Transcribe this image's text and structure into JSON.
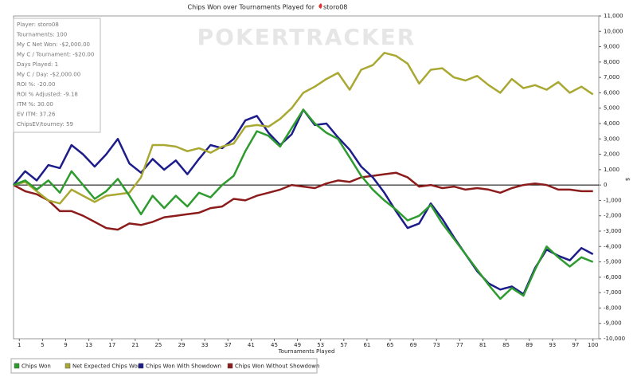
{
  "chart_data": {
    "type": "line",
    "title": "Chips Won over Tournaments Played for",
    "title_player": "storo08",
    "watermark": "POKERTRACKER",
    "x_label": "Tournaments Played",
    "y_label": "$",
    "info": [
      "Player: storo08",
      "Tournaments: 100",
      "My C Net Won: -$2,000.00",
      "My C / Tournament: -$20.00",
      "Days Played: 1",
      "My C / Day: -$2,000.00",
      "ROI %: -20.00",
      "ROI % Adjusted: -9.18",
      "ITM %: 30.00",
      "EV ITM: 37.26",
      "ChipsEV/tourney: 59"
    ],
    "x": [
      0,
      2,
      4,
      6,
      8,
      10,
      12,
      14,
      16,
      18,
      20,
      22,
      24,
      26,
      28,
      30,
      32,
      34,
      36,
      38,
      40,
      42,
      44,
      46,
      48,
      50,
      52,
      54,
      56,
      58,
      60,
      62,
      64,
      66,
      68,
      70,
      72,
      74,
      76,
      78,
      80,
      82,
      84,
      86,
      88,
      90,
      92,
      94,
      96,
      98,
      100
    ],
    "series": [
      {
        "name": "Chips Won",
        "color": "#2e9b2e",
        "values": [
          0,
          300,
          -300,
          300,
          -500,
          900,
          0,
          -900,
          -400,
          400,
          -700,
          -1900,
          -700,
          -1500,
          -700,
          -1400,
          -500,
          -800,
          0,
          600,
          2200,
          3500,
          3200,
          2500,
          3700,
          4900,
          4000,
          3400,
          3000,
          1800,
          600,
          -300,
          -1000,
          -1600,
          -2300,
          -2000,
          -1300,
          -2500,
          -3500,
          -4500,
          -5500,
          -6500,
          -7400,
          -6700,
          -7200,
          -5500,
          -4000,
          -4700,
          -5300,
          -4700,
          -5000
        ]
      },
      {
        "name": "Net Expected Chips Won",
        "color": "#a9a833",
        "values": [
          0,
          200,
          -400,
          -1000,
          -1200,
          -300,
          -700,
          -1100,
          -700,
          -600,
          -500,
          500,
          2600,
          2600,
          2500,
          2200,
          2400,
          2100,
          2500,
          2700,
          3800,
          3900,
          3800,
          4300,
          5000,
          6000,
          6400,
          6900,
          7300,
          6200,
          7500,
          7800,
          8600,
          8400,
          7900,
          6600,
          7500,
          7600,
          7000,
          6800,
          7100,
          6500,
          6000,
          6900,
          6300,
          6500,
          6200,
          6700,
          6000,
          6400,
          5900
        ]
      },
      {
        "name": "Chips Won With Showdown",
        "color": "#1c1c8a",
        "values": [
          0,
          900,
          300,
          1300,
          1100,
          2600,
          2000,
          1200,
          2000,
          3000,
          1400,
          800,
          1700,
          1000,
          1600,
          700,
          1700,
          2600,
          2400,
          3000,
          4200,
          4500,
          3400,
          2600,
          3300,
          4900,
          3900,
          4000,
          3100,
          2300,
          1200,
          500,
          -500,
          -1700,
          -2800,
          -2500,
          -1200,
          -2200,
          -3400,
          -4500,
          -5600,
          -6400,
          -6800,
          -6600,
          -7100,
          -5400,
          -4200,
          -4600,
          -4900,
          -4100,
          -4500
        ]
      },
      {
        "name": "Chips Won Without Showdown",
        "color": "#8c1c1c",
        "values": [
          0,
          -400,
          -600,
          -1000,
          -1700,
          -1700,
          -2000,
          -2400,
          -2800,
          -2900,
          -2500,
          -2600,
          -2400,
          -2100,
          -2000,
          -1900,
          -1800,
          -1500,
          -1400,
          -900,
          -1000,
          -700,
          -500,
          -300,
          0,
          -100,
          -200,
          100,
          300,
          200,
          500,
          600,
          700,
          800,
          500,
          -100,
          0,
          -200,
          -100,
          -300,
          -200,
          -300,
          -500,
          -200,
          0,
          100,
          0,
          -300,
          -300,
          -400,
          -400
        ]
      }
    ],
    "xlim": [
      0,
      101
    ],
    "xticks": [
      1,
      5,
      9,
      13,
      17,
      21,
      25,
      29,
      33,
      37,
      41,
      45,
      49,
      53,
      57,
      61,
      65,
      69,
      73,
      77,
      81,
      85,
      89,
      93,
      97,
      100
    ],
    "ylim": [
      -10000,
      11000
    ],
    "yticks": [
      {
        "value": 11000,
        "label": "11,000"
      },
      {
        "value": 10000,
        "label": "10,000"
      },
      {
        "value": 9000,
        "label": "9,000"
      },
      {
        "value": 8000,
        "label": "8,000"
      },
      {
        "value": 7000,
        "label": "7,000"
      },
      {
        "value": 6000,
        "label": "6,000"
      },
      {
        "value": 5000,
        "label": "5,000"
      },
      {
        "value": 4000,
        "label": "4,000"
      },
      {
        "value": 3000,
        "label": "3,000"
      },
      {
        "value": 2000,
        "label": "2,000"
      },
      {
        "value": 1000,
        "label": "1,000"
      },
      0,
      {
        "value": -1000,
        "label": "-1,000"
      },
      {
        "value": -2000,
        "label": "-2,000"
      },
      {
        "value": -3000,
        "label": "-3,000"
      },
      {
        "value": -4000,
        "label": "-4,000"
      },
      {
        "value": -5000,
        "label": "-5,000"
      },
      {
        "value": -6000,
        "label": "-6,000"
      },
      {
        "value": -7000,
        "label": "-7,000"
      },
      {
        "value": -8000,
        "label": "-8,000"
      },
      {
        "value": -9000,
        "label": "-9,000"
      },
      {
        "value": -10000,
        "label": "-10,000"
      }
    ],
    "grid": false
  }
}
